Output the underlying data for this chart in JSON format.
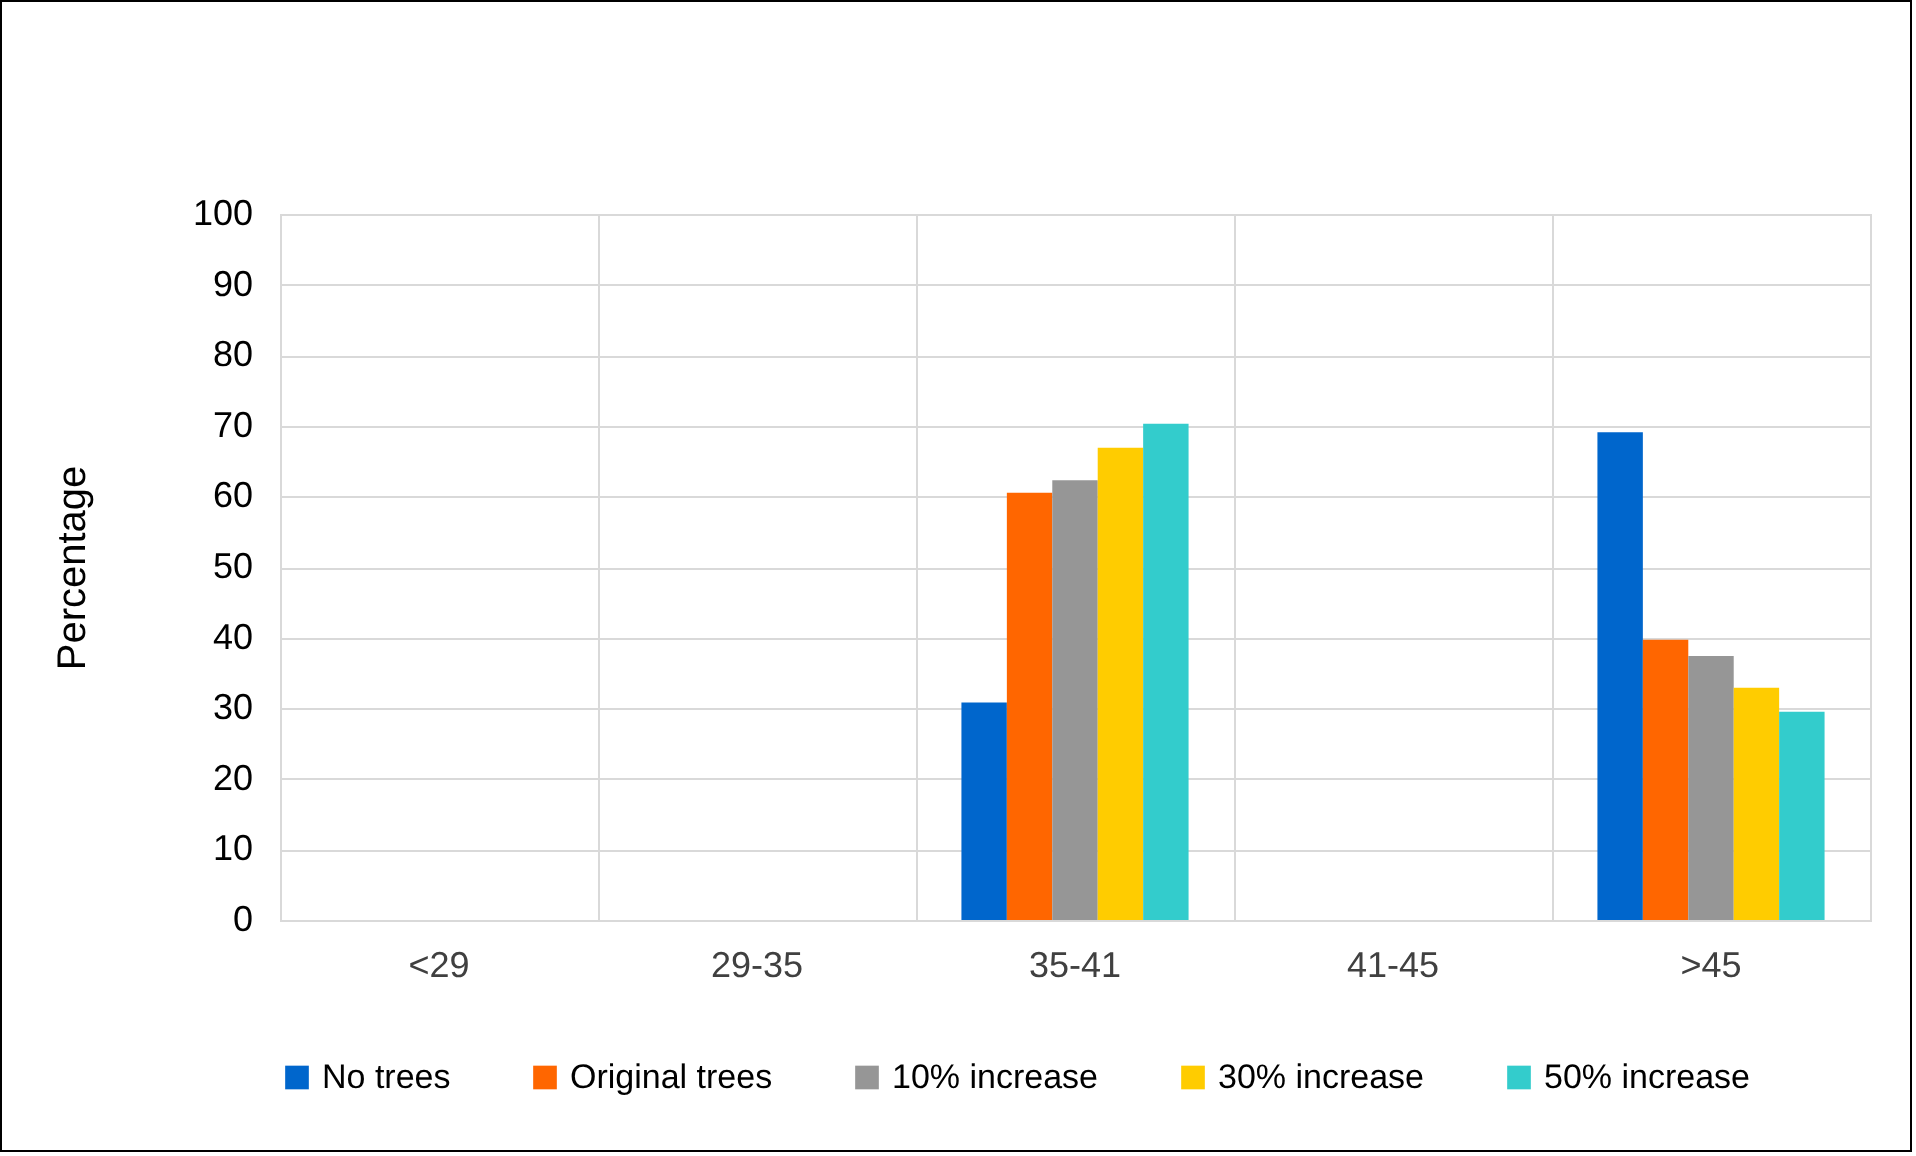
{
  "chart_data": {
    "type": "bar",
    "ylabel": "Percentage",
    "categories": [
      "<29",
      "29-35",
      "35-41",
      "41-45",
      ">45"
    ],
    "series": [
      {
        "name": "No trees",
        "color": "#0066cc",
        "values": [
          0,
          0,
          30.8,
          0,
          69.1
        ]
      },
      {
        "name": "Original trees",
        "color": "#ff6600",
        "values": [
          0,
          0,
          60.5,
          0,
          39.7
        ]
      },
      {
        "name": "10% increase",
        "color": "#969696",
        "values": [
          0,
          0,
          62.3,
          0,
          37.4
        ]
      },
      {
        "name": "30% increase",
        "color": "#ffcc00",
        "values": [
          0,
          0,
          66.9,
          0,
          32.9
        ]
      },
      {
        "name": "50% increase",
        "color": "#33cccc",
        "values": [
          0,
          0,
          70.3,
          0,
          29.5
        ]
      }
    ],
    "ylim": [
      0,
      100
    ],
    "yticks": [
      0,
      10,
      20,
      30,
      40,
      50,
      60,
      70,
      80,
      90,
      100
    ],
    "grid": true,
    "legend": "bottom"
  }
}
